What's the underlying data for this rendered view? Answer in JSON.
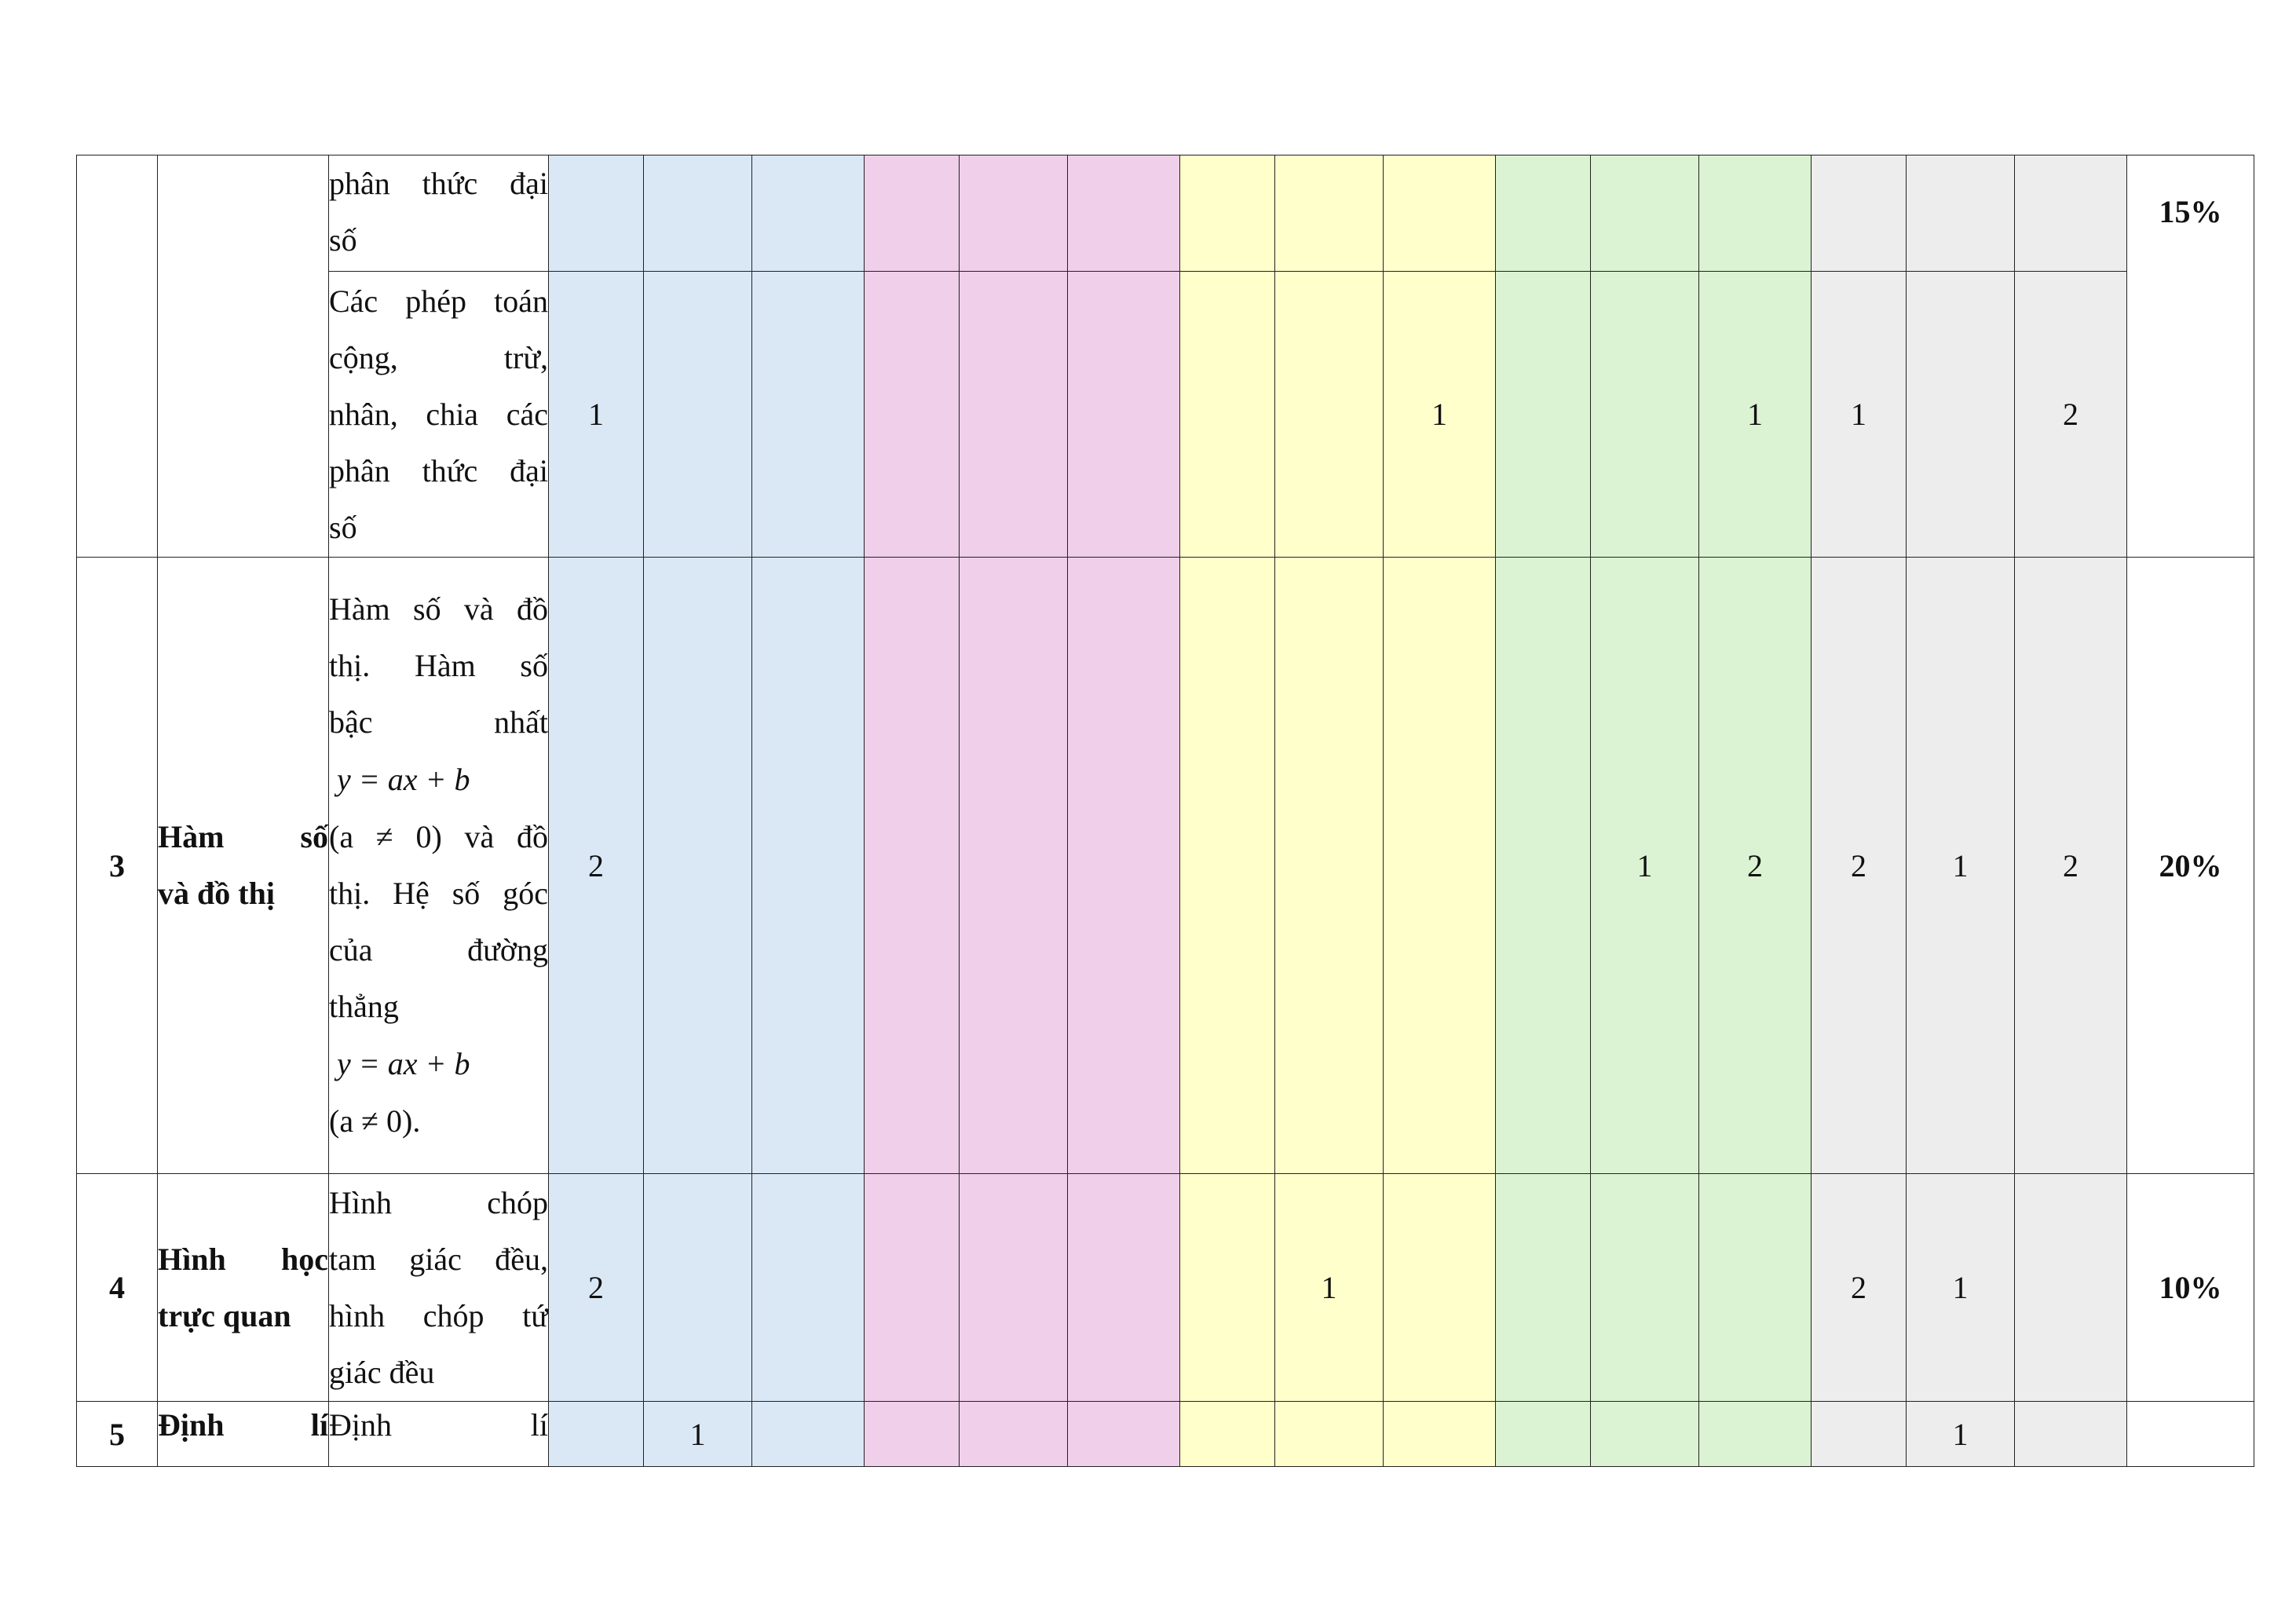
{
  "table": {
    "colors": {
      "nhan_biet": "#dae8f6",
      "thong_hieu": "#f0cfea",
      "van_dung": "#ffffcc",
      "van_dung_cao": "#dbf3d2",
      "tong": "#ededed"
    },
    "rows": [
      {
        "stt": "",
        "chapter": "",
        "content_lines": [
          "phân thức đại",
          "số"
        ],
        "cells": [
          "",
          "",
          "",
          "",
          "",
          "",
          "",
          "",
          "",
          "",
          "",
          "",
          "",
          "",
          ""
        ],
        "percent": "15%"
      },
      {
        "content_lines": [
          "Các phép toán",
          "cộng, trừ,",
          "nhân, chia các",
          "phân thức đại",
          "số"
        ],
        "cells": [
          "1",
          "",
          "",
          "",
          "",
          "",
          "",
          "",
          "1",
          "",
          "",
          "1",
          "1",
          "",
          "2"
        ]
      },
      {
        "stt": "3",
        "chapter_lines": [
          "Hàm số",
          "và đồ thị"
        ],
        "content_lines": [
          "Hàm số và đồ",
          "thị. Hàm số",
          "bậc nhất",
          "y = ax + b",
          "(a ≠ 0) và đồ",
          "thị. Hệ số góc",
          "của đường",
          "thẳng",
          "y = ax + b",
          "(a ≠ 0)."
        ],
        "cells": [
          "2",
          "",
          "",
          "",
          "",
          "",
          "",
          "",
          "",
          "",
          "1",
          "2",
          "2",
          "1",
          "2"
        ],
        "percent": "20%"
      },
      {
        "stt": "4",
        "chapter_lines": [
          "Hình học",
          "trực quan"
        ],
        "content_lines": [
          "Hình chóp",
          "tam giác đều,",
          "hình chóp tứ",
          "giác đều"
        ],
        "cells": [
          "2",
          "",
          "",
          "",
          "",
          "",
          "",
          "1",
          "",
          "",
          "",
          "",
          "2",
          "1",
          ""
        ],
        "percent": "10%"
      },
      {
        "stt": "5",
        "chapter_lines": [
          "Định lí"
        ],
        "content_lines": [
          "Định lí"
        ],
        "cells": [
          "",
          "1",
          "",
          "",
          "",
          "",
          "",
          "",
          "",
          "",
          "",
          "",
          "",
          "1",
          ""
        ],
        "percent": ""
      }
    ]
  }
}
